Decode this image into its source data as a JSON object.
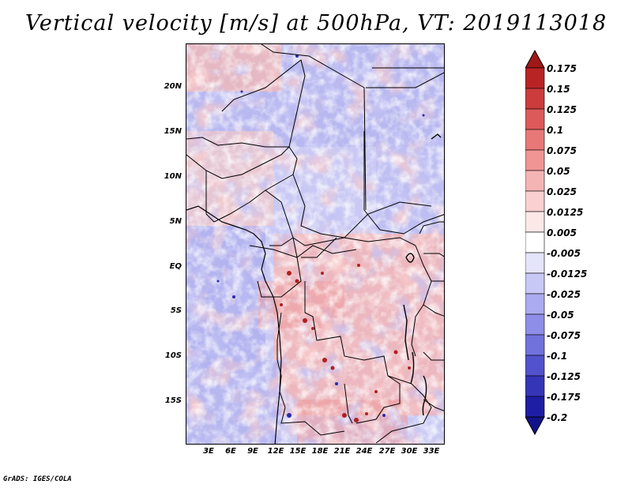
{
  "title": "Vertical velocity [m/s] at 500hPa, VT: 2019113018",
  "credit": "GrADS: IGES/COLA",
  "map": {
    "variable": "Vertical velocity",
    "units": "m/s",
    "level": "500hPa",
    "valid_time": "2019113018",
    "lat_labels": [
      "20N",
      "15N",
      "10N",
      "5N",
      "EQ",
      "5S",
      "10S",
      "15S"
    ],
    "lon_labels": [
      "3E",
      "6E",
      "9E",
      "12E",
      "15E",
      "18E",
      "21E",
      "24E",
      "27E",
      "30E",
      "33E"
    ]
  },
  "colorbar": {
    "labels": [
      "0.175",
      "0.15",
      "0.125",
      "0.1",
      "0.075",
      "0.05",
      "0.025",
      "0.0125",
      "0.005",
      "-0.005",
      "-0.0125",
      "-0.025",
      "-0.05",
      "-0.075",
      "-0.1",
      "-0.125",
      "-0.175",
      "-0.2"
    ],
    "colors": [
      "#a01818",
      "#b82424",
      "#cc3c3c",
      "#dc5a5a",
      "#e87878",
      "#f09494",
      "#f5b4b4",
      "#fad0d0",
      "#fde8e8",
      "#ffffff",
      "#e4e4fa",
      "#c8c8f5",
      "#ababef",
      "#8e8ee8",
      "#7272dd",
      "#5252cc",
      "#3535b8",
      "#1e1ea4",
      "#12128a"
    ]
  },
  "colors": {
    "positive": "#e87070",
    "negative": "#7a7ae6",
    "neutral": "#ffffff"
  }
}
